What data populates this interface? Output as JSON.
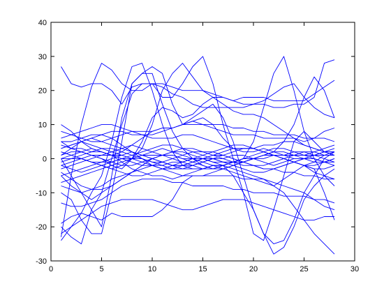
{
  "chart_data": {
    "type": "line",
    "title": "",
    "xlabel": "",
    "ylabel": "",
    "xlim": [
      0,
      30
    ],
    "ylim": [
      -30,
      40
    ],
    "xticks": [
      0,
      5,
      10,
      15,
      20,
      25,
      30
    ],
    "yticks": [
      -30,
      -20,
      -10,
      0,
      10,
      20,
      30,
      40
    ],
    "grid": false,
    "legend": "none",
    "line_color": "#0000ff",
    "x": [
      1,
      2,
      3,
      4,
      5,
      6,
      7,
      8,
      9,
      10,
      11,
      12,
      13,
      14,
      15,
      16,
      17,
      18,
      19,
      20,
      21,
      22,
      23,
      24,
      25,
      26,
      27,
      28
    ],
    "series": [
      {
        "values": [
          27,
          22,
          21,
          22,
          22,
          20,
          16,
          21,
          22,
          22,
          21,
          19,
          18,
          16,
          15,
          15,
          15,
          15,
          15,
          16,
          16,
          15,
          15,
          16,
          16,
          18,
          28,
          29
        ]
      },
      {
        "values": [
          -23,
          -5,
          10,
          21,
          28,
          26,
          22,
          20,
          20,
          22,
          22,
          21,
          20,
          20,
          20,
          19,
          18,
          17,
          18,
          18,
          18,
          17,
          17,
          17,
          17,
          19,
          21,
          23
        ]
      },
      {
        "values": [
          -24,
          -20,
          -16,
          -10,
          -5,
          5,
          18,
          27,
          28,
          20,
          10,
          2,
          -2,
          -2,
          -1,
          0,
          0,
          1,
          1,
          0,
          -1,
          -2,
          -1,
          0,
          0,
          1,
          2,
          2
        ]
      },
      {
        "values": [
          -10,
          -12,
          -18,
          -22,
          -22,
          -10,
          5,
          22,
          25,
          27,
          25,
          16,
          10,
          11,
          12,
          10,
          6,
          3,
          2,
          2,
          3,
          2,
          1,
          1,
          1,
          2,
          3,
          4
        ]
      },
      {
        "values": [
          0,
          -5,
          -10,
          -15,
          -20,
          -5,
          12,
          22,
          25,
          25,
          16,
          8,
          3,
          0,
          -2,
          -3,
          -2,
          -1,
          0,
          0,
          1,
          1,
          1,
          1,
          1,
          1,
          1,
          1
        ]
      },
      {
        "values": [
          -20,
          -23,
          -25,
          -15,
          -10,
          0,
          10,
          19,
          22,
          22,
          18,
          18,
          22,
          27,
          30,
          22,
          10,
          0,
          -10,
          -22,
          -24,
          -15,
          -5,
          5,
          8,
          5,
          2,
          1
        ]
      },
      {
        "values": [
          5,
          3,
          2,
          1,
          0,
          -2,
          -3,
          0,
          3,
          10,
          20,
          25,
          28,
          24,
          20,
          18,
          16,
          14,
          13,
          13,
          12,
          10,
          8,
          6,
          4,
          3,
          2,
          2
        ]
      },
      {
        "values": [
          2,
          1,
          0,
          -1,
          -2,
          -3,
          -2,
          0,
          5,
          12,
          15,
          14,
          12,
          13,
          16,
          18,
          18,
          17,
          16,
          16,
          17,
          19,
          21,
          22,
          18,
          15,
          13,
          12
        ]
      },
      {
        "values": [
          10,
          8,
          5,
          3,
          2,
          1,
          2,
          4,
          6,
          8,
          9,
          9,
          10,
          12,
          14,
          16,
          12,
          5,
          -5,
          -15,
          -22,
          -25,
          -24,
          -18,
          -10,
          -5,
          0,
          2
        ]
      },
      {
        "values": [
          0,
          1,
          2,
          3,
          2,
          1,
          -1,
          -3,
          -4,
          -5,
          -5,
          -6,
          -5,
          -4,
          -3,
          -2,
          -2,
          -1,
          0,
          5,
          15,
          25,
          30,
          20,
          8,
          0,
          -5,
          -8
        ]
      },
      {
        "values": [
          -5,
          -4,
          -3,
          -2,
          -1,
          0,
          1,
          2,
          1,
          0,
          -1,
          -2,
          -3,
          -3,
          -3,
          -2,
          -2,
          -5,
          -10,
          -15,
          -22,
          -28,
          -26,
          -20,
          -12,
          -8,
          -5,
          -3
        ]
      },
      {
        "values": [
          3,
          4,
          5,
          4,
          3,
          2,
          1,
          0,
          -1,
          -2,
          -3,
          -4,
          -5,
          -5,
          -5,
          -4,
          -3,
          -2,
          -1,
          0,
          1,
          2,
          5,
          10,
          18,
          24,
          20,
          12
        ]
      },
      {
        "values": [
          -7,
          -6,
          -5,
          -4,
          -3,
          -2,
          -1,
          0,
          1,
          2,
          3,
          2,
          1,
          0,
          -1,
          -2,
          -3,
          -4,
          -5,
          -6,
          -7,
          -8,
          -6,
          -4,
          -2,
          -3,
          -10,
          -18
        ]
      },
      {
        "values": [
          -5,
          -8,
          -10,
          -12,
          -10,
          -8,
          -6,
          -4,
          -2,
          0,
          1,
          2,
          2,
          1,
          0,
          -1,
          -2,
          -3,
          -4,
          -5,
          -6,
          -8,
          -10,
          -14,
          -18,
          -22,
          -25,
          -28
        ]
      },
      {
        "values": [
          5,
          5,
          6,
          7,
          7,
          8,
          8,
          7,
          7,
          7,
          8,
          9,
          10,
          11,
          10,
          9,
          8,
          7,
          7,
          7,
          6,
          6,
          6,
          6,
          5,
          6,
          8,
          9
        ]
      },
      {
        "values": [
          3,
          4,
          5,
          6,
          5,
          4,
          3,
          2,
          1,
          0,
          -1,
          -2,
          -2,
          -1,
          0,
          1,
          2,
          3,
          3,
          3,
          2,
          1,
          0,
          -1,
          -2,
          -1,
          1,
          2
        ]
      },
      {
        "values": [
          -2,
          -3,
          -4,
          -3,
          -2,
          -1,
          0,
          1,
          2,
          3,
          4,
          4,
          3,
          2,
          1,
          0,
          -1,
          -2,
          -3,
          -4,
          -4,
          -3,
          -2,
          -1,
          0,
          1,
          2,
          3
        ]
      },
      {
        "values": [
          1,
          2,
          2,
          1,
          0,
          -1,
          -2,
          -2,
          -1,
          0,
          1,
          2,
          3,
          3,
          2,
          1,
          0,
          -1,
          -1,
          0,
          1,
          2,
          2,
          1,
          0,
          -1,
          -1,
          0
        ]
      },
      {
        "values": [
          -3,
          -2,
          -1,
          0,
          1,
          2,
          3,
          4,
          3,
          2,
          1,
          0,
          -1,
          -2,
          -3,
          -3,
          -2,
          -1,
          0,
          1,
          2,
          3,
          3,
          2,
          1,
          0,
          -1,
          -2
        ]
      },
      {
        "values": [
          4,
          3,
          3,
          2,
          2,
          1,
          1,
          0,
          0,
          -1,
          -1,
          -2,
          -2,
          -3,
          -3,
          -2,
          -2,
          -1,
          -1,
          0,
          0,
          1,
          1,
          2,
          2,
          1,
          0,
          -1
        ]
      },
      {
        "values": [
          -1,
          0,
          1,
          2,
          3,
          3,
          2,
          1,
          0,
          -1,
          -2,
          -3,
          -3,
          -2,
          -1,
          0,
          1,
          2,
          3,
          3,
          2,
          1,
          0,
          -1,
          -2,
          -3,
          -3,
          -2
        ]
      },
      {
        "values": [
          2,
          1,
          0,
          -1,
          -2,
          -3,
          -4,
          -5,
          -5,
          -4,
          -3,
          -2,
          -1,
          0,
          1,
          2,
          3,
          4,
          4,
          3,
          2,
          1,
          0,
          -1,
          -2,
          -2,
          -1,
          0
        ]
      },
      {
        "values": [
          -8,
          -9,
          -10,
          -9,
          -8,
          -6,
          -5,
          -4,
          -3,
          -2,
          -2,
          -1,
          -1,
          0,
          0,
          0,
          -1,
          -1,
          -2,
          -2,
          -3,
          -3,
          -4,
          -4,
          -5,
          -5,
          -6,
          -6
        ]
      },
      {
        "values": [
          -13,
          -14,
          -14,
          -13,
          -12,
          -10,
          -8,
          -7,
          -6,
          -6,
          -6,
          -7,
          -7,
          -8,
          -8,
          -8,
          -8,
          -9,
          -9,
          -10,
          -10,
          -10,
          -11,
          -11,
          -11,
          -12,
          -12,
          -13
        ]
      },
      {
        "values": [
          -19,
          -17,
          -16,
          -17,
          -18,
          -16,
          -17,
          -17,
          -17,
          -17,
          -15,
          -12,
          -7,
          -5,
          -5,
          -5,
          -5,
          -5,
          -6,
          -6,
          -6,
          -7,
          -8,
          -9,
          -10,
          -12,
          -14,
          -15
        ]
      },
      {
        "values": [
          8,
          7,
          6,
          5,
          5,
          6,
          7,
          8,
          8,
          8,
          9,
          9,
          10,
          10,
          10,
          10,
          10,
          9,
          9,
          8,
          8,
          7,
          7,
          7,
          6,
          6,
          6,
          5
        ]
      },
      {
        "values": [
          -22,
          -20,
          -18,
          -16,
          -14,
          -13,
          -12,
          -12,
          -12,
          -12,
          -13,
          -14,
          -15,
          -15,
          -14,
          -13,
          -12,
          -12,
          -12,
          -13,
          -14,
          -15,
          -16,
          -17,
          -18,
          -18,
          -17,
          -17
        ]
      },
      {
        "values": [
          0,
          0,
          0,
          -1,
          -1,
          -1,
          0,
          0,
          1,
          1,
          1,
          1,
          0,
          0,
          0,
          -1,
          -1,
          -1,
          0,
          0,
          1,
          1,
          1,
          0,
          0,
          0,
          -1,
          -1
        ]
      },
      {
        "values": [
          6,
          7,
          8,
          9,
          10,
          10,
          9,
          8,
          7,
          6,
          6,
          6,
          7,
          7,
          6,
          5,
          4,
          3,
          3,
          3,
          4,
          4,
          5,
          5,
          4,
          3,
          2,
          1
        ]
      },
      {
        "values": [
          -4,
          -6,
          -8,
          -9,
          -9,
          -8,
          -6,
          -4,
          -2,
          0,
          1,
          1,
          0,
          -1,
          -2,
          -3,
          -3,
          -2,
          -1,
          0,
          1,
          1,
          0,
          -1,
          -2,
          -4,
          -5,
          -6
        ]
      },
      {
        "values": [
          1,
          3,
          5,
          6,
          7,
          6,
          4,
          2,
          0,
          -2,
          -3,
          -3,
          -2,
          -1,
          0,
          1,
          1,
          0,
          -1,
          -2,
          -2,
          -1,
          0,
          1,
          2,
          2,
          1,
          1
        ]
      },
      {
        "values": [
          -2,
          -1,
          0,
          1,
          1,
          1,
          0,
          -1,
          -2,
          -2,
          -1,
          0,
          1,
          2,
          2,
          2,
          1,
          0,
          -1,
          -2,
          -3,
          -3,
          -2,
          -1,
          0,
          1,
          1,
          1
        ]
      }
    ]
  }
}
